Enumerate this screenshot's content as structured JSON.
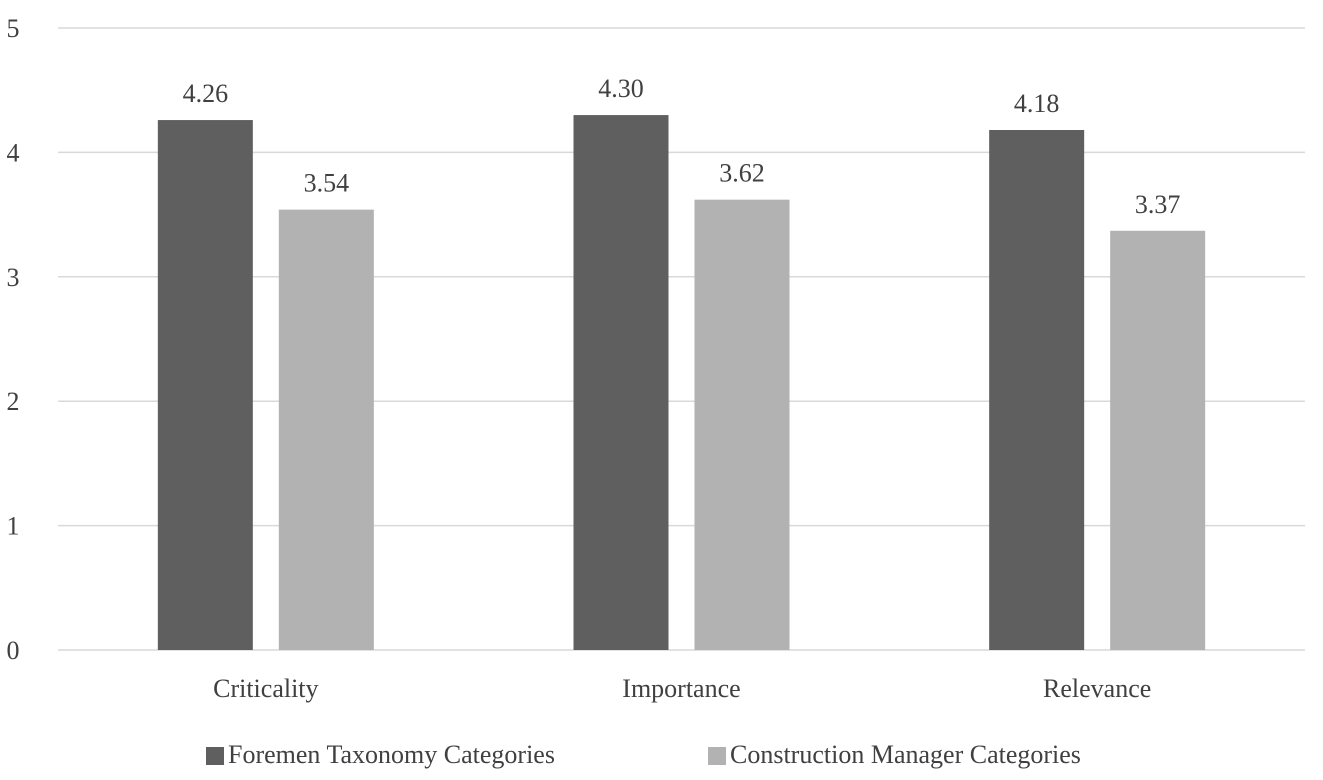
{
  "chart_data": {
    "type": "bar",
    "categories": [
      "Criticality",
      "Importance",
      "Relevance"
    ],
    "series": [
      {
        "name": "Foremen Taxonomy Categories",
        "values": [
          4.26,
          4.3,
          4.18
        ],
        "value_labels": [
          "4.26",
          "4.30",
          "4.18"
        ],
        "color": "#5f5f5f"
      },
      {
        "name": "Construction Manager Categories",
        "values": [
          3.54,
          3.62,
          3.37
        ],
        "value_labels": [
          "3.54",
          "3.62",
          "3.37"
        ],
        "color": "#b2b2b2"
      }
    ],
    "ylim": [
      0,
      5
    ],
    "yticks": [
      0,
      1,
      2,
      3,
      4,
      5
    ],
    "ytick_labels": [
      "0",
      "1",
      "2",
      "3",
      "4",
      "5"
    ],
    "grid": true,
    "legend_position": "bottom-center",
    "gridline_color": "#d9d9d9"
  }
}
